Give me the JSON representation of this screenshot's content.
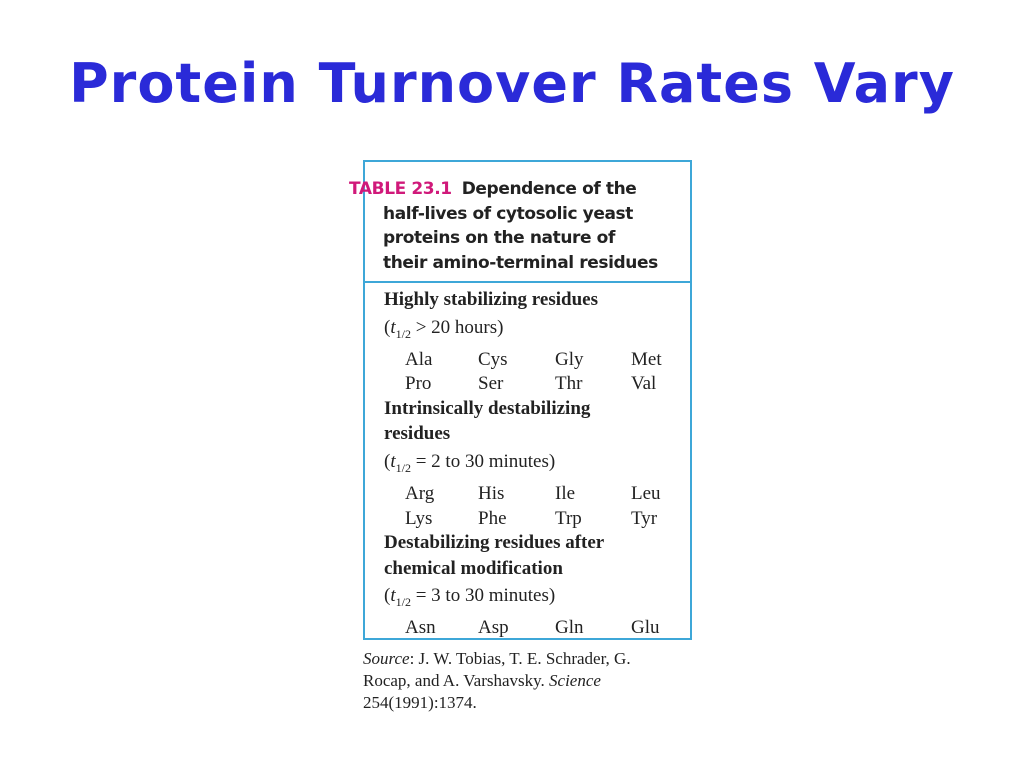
{
  "slide": {
    "title": "Protein Turnover Rates Vary"
  },
  "table": {
    "label": "TABLE 23.1",
    "caption": "Dependence of the half-lives of cytosolic yeast proteins on the nature of their amino-terminal residues",
    "groups": [
      {
        "heading": "Highly stabilizing residues",
        "half_life": {
          "prefix": "(",
          "symbol": "t",
          "subscript": "1/2",
          "condition": "> 20 hours)"
        },
        "rows": [
          [
            "Ala",
            "Cys",
            "Gly",
            "Met"
          ],
          [
            "Pro",
            "Ser",
            "Thr",
            "Val"
          ]
        ]
      },
      {
        "heading": "Intrinsically destabilizing residues",
        "half_life": {
          "prefix": "(",
          "symbol": "t",
          "subscript": "1/2",
          "condition": "= 2 to 30 minutes)"
        },
        "rows": [
          [
            "Arg",
            "His",
            "Ile",
            "Leu"
          ],
          [
            "Lys",
            "Phe",
            "Trp",
            "Tyr"
          ]
        ]
      },
      {
        "heading": "Destabilizing residues after chemical modification",
        "half_life": {
          "prefix": "(",
          "symbol": "t",
          "subscript": "1/2",
          "condition": "= 3 to 30 minutes)"
        },
        "rows": [
          [
            "Asn",
            "Asp",
            "Gln",
            "Glu"
          ]
        ]
      }
    ],
    "source": {
      "label": "Source",
      "authors": ": J. W. Tobias, T. E. Schrader, G. Rocap, and A. Varshavsky. ",
      "journal": "Science",
      "citation": " 254(1991):1374."
    }
  }
}
